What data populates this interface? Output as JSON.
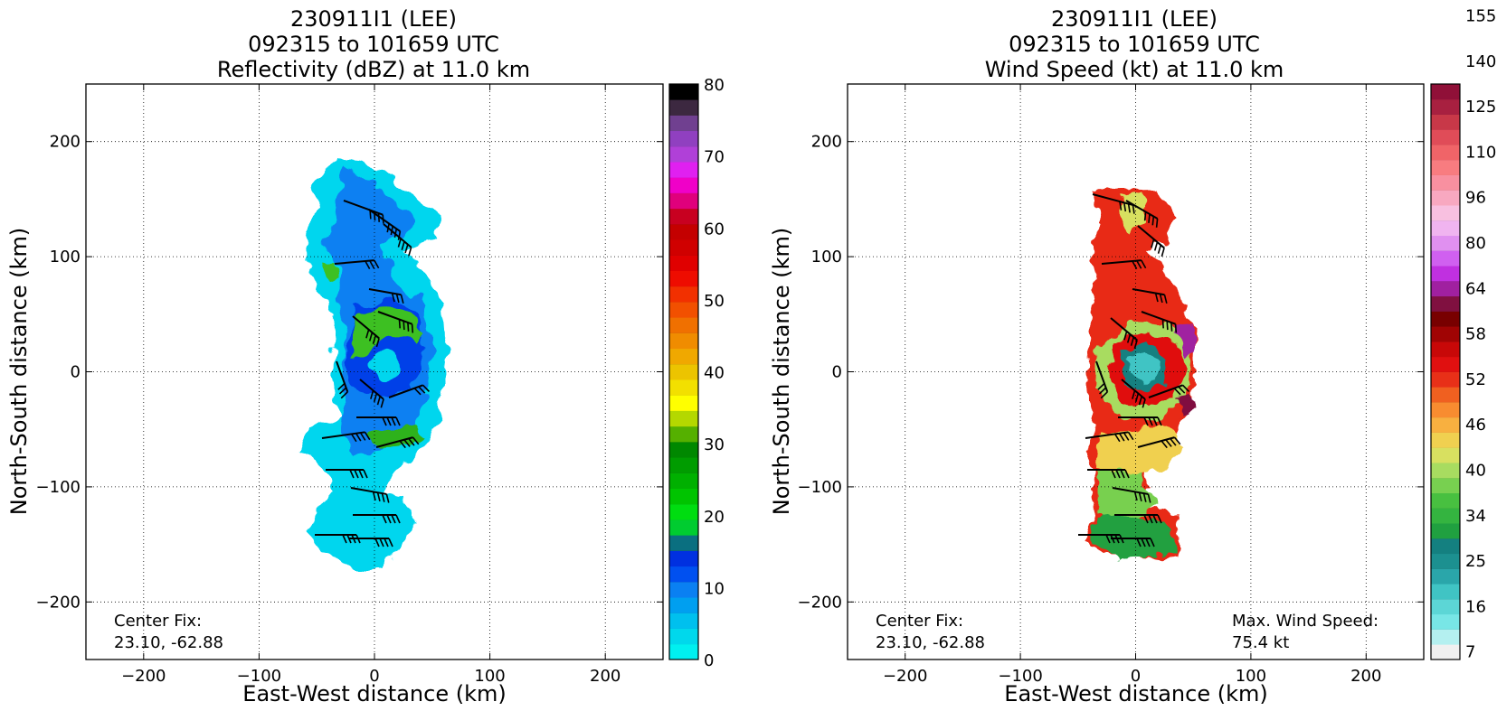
{
  "colors": {
    "refl_scale": [
      "#00f0f0",
      "#00d8ec",
      "#00c0ee",
      "#009ff0",
      "#0a80f2",
      "#0050f0",
      "#0030e0",
      "#0a6f80",
      "#00cc30",
      "#00dd10",
      "#00c400",
      "#00b000",
      "#009c00",
      "#008800",
      "#55b000",
      "#b4d800",
      "#ffff00",
      "#f2e000",
      "#ecc400",
      "#f0a800",
      "#f08c00",
      "#f07000",
      "#f25000",
      "#f23000",
      "#ee0c00",
      "#e00000",
      "#d00000",
      "#c40000",
      "#c80020",
      "#e0007c",
      "#f000c8",
      "#e020f0",
      "#b040d8",
      "#9040c0",
      "#704090",
      "#3c2840",
      "#000000"
    ],
    "wind_scale": [
      "#f0f0f0",
      "#b4f0f0",
      "#78e6e6",
      "#5cd6d6",
      "#40c4c4",
      "#2aa6aa",
      "#1c9090",
      "#148080",
      "#20a040",
      "#34b440",
      "#48c040",
      "#78d050",
      "#a8dc60",
      "#d8e060",
      "#f0d050",
      "#f8b040",
      "#f88c30",
      "#f06020",
      "#e83018",
      "#e01010",
      "#c80808",
      "#a00404",
      "#780000",
      "#801040",
      "#a020a0",
      "#c030e0",
      "#d060f0",
      "#e090f0",
      "#f0b4f0",
      "#f8c0e0",
      "#f8a8c0",
      "#f890a0",
      "#f87c80",
      "#f06468",
      "#e04c58",
      "#c83848",
      "#a82040",
      "#901038"
    ]
  },
  "chart_data": [
    {
      "type": "heatmap",
      "title": [
        "230911I1 (LEE)",
        "092315 to 101659 UTC",
        "Reflectivity (dBZ) at 11.0 km"
      ],
      "xlabel": "East-West distance (km)",
      "ylabel": "North-South distance (km)",
      "xlim": [
        -250,
        250
      ],
      "ylim": [
        -250,
        250
      ],
      "xticks": [
        -200,
        -100,
        0,
        100,
        200
      ],
      "yticks": [
        -200,
        -100,
        0,
        100,
        200
      ],
      "xticklabels": [
        "−200",
        "−100",
        "0",
        "100",
        "200"
      ],
      "yticklabels": [
        "−200",
        "−100",
        "0",
        "100",
        "200"
      ],
      "grid": true,
      "colorbar": {
        "min": 0,
        "max": 80,
        "ticks": [
          0,
          10,
          20,
          30,
          40,
          50,
          60,
          70,
          80
        ],
        "labels": [
          "0",
          "10",
          "20",
          "30",
          "40",
          "50",
          "60",
          "70",
          "80"
        ]
      },
      "annotation": [
        "Center Fix:",
        "23.10, -62.88"
      ]
    },
    {
      "type": "heatmap",
      "title": [
        "230911I1 (LEE)",
        "092315 to 101659 UTC",
        "Wind Speed (kt) at 11.0 km"
      ],
      "xlabel": "East-West distance (km)",
      "ylabel": "North-South distance (km)",
      "xlim": [
        -250,
        250
      ],
      "ylim": [
        -250,
        250
      ],
      "xticks": [
        -200,
        -100,
        0,
        100,
        200
      ],
      "yticks": [
        -200,
        -100,
        0,
        100,
        200
      ],
      "xticklabels": [
        "−200",
        "−100",
        "0",
        "100",
        "200"
      ],
      "yticklabels": [
        "−200",
        "−100",
        "0",
        "100",
        "200"
      ],
      "grid": true,
      "colorbar": {
        "labels": [
          "7",
          "16",
          "25",
          "34",
          "40",
          "46",
          "52",
          "58",
          "64",
          "80",
          "96",
          "110",
          "125",
          "140",
          "155"
        ]
      },
      "annotation": [
        "Center Fix:",
        "23.10, -62.88"
      ],
      "max_wind_label": [
        "Max. Wind Speed:",
        "75.4 kt"
      ],
      "max_wind_speed_kt": 75.4
    }
  ]
}
